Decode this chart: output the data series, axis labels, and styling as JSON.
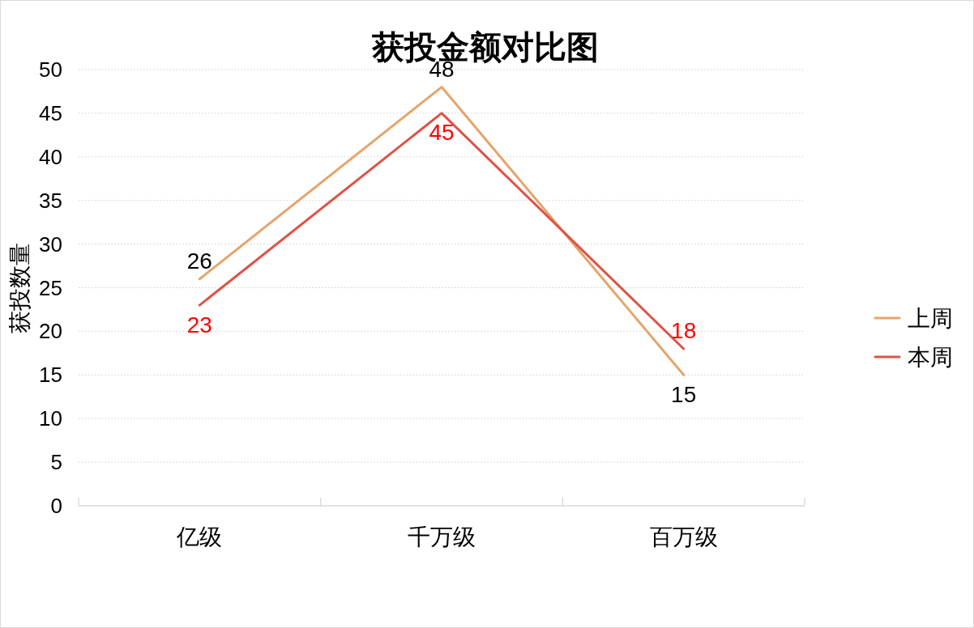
{
  "chart_data": {
    "type": "line",
    "title": "获投金额对比图",
    "ylabel": "获投数量",
    "categories": [
      "亿级",
      "千万级",
      "百万级"
    ],
    "series": [
      {
        "name": "上周",
        "color": "#e6a46a",
        "values": [
          26,
          48,
          15
        ]
      },
      {
        "name": "本周",
        "color": "#dd5347",
        "values": [
          23,
          45,
          18
        ]
      }
    ],
    "ylim": [
      0,
      50
    ],
    "yticks": [
      0,
      5,
      10,
      15,
      20,
      25,
      30,
      35,
      40,
      45,
      50
    ],
    "grid": "y",
    "legend": "right",
    "data_labels": true
  }
}
